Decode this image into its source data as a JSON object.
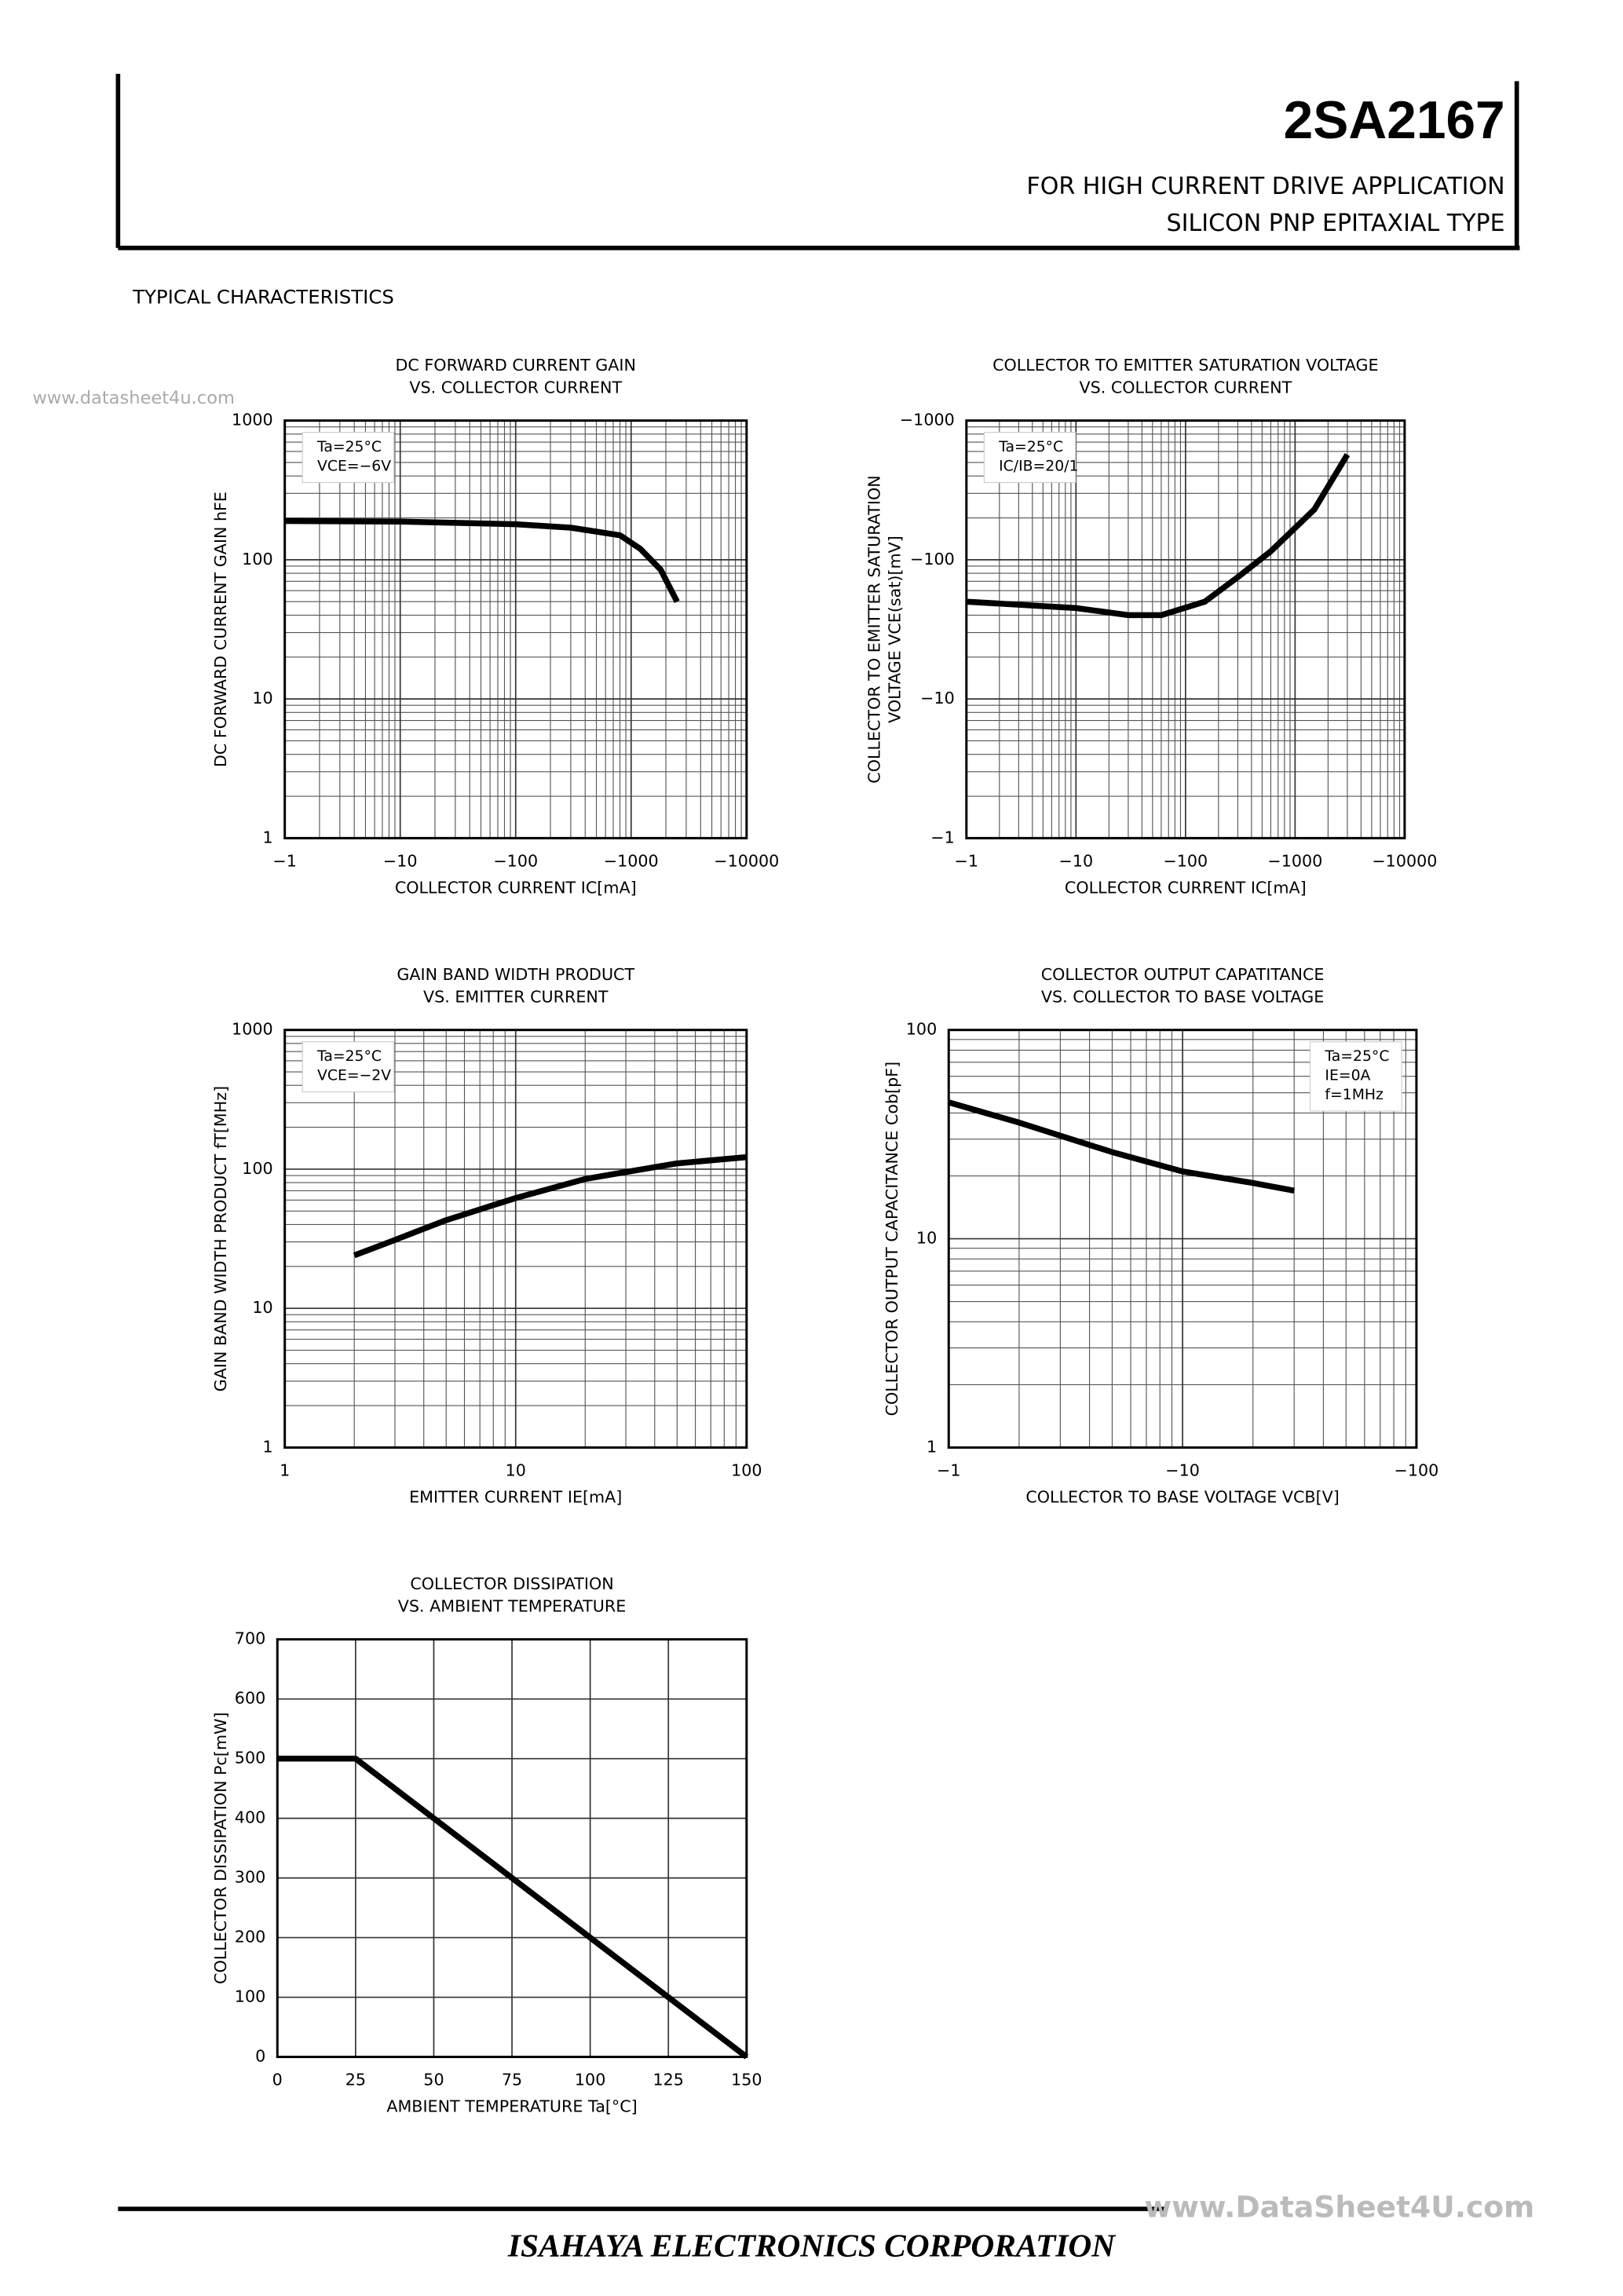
{
  "header": {
    "part_number": "2SA2167",
    "lines": [
      "FOR HIGH CURRENT DRIVE APPLICATION",
      "SILICON PNP EPITAXIAL TYPE"
    ]
  },
  "section_title": "TYPICAL CHARACTERISTICS",
  "watermark": "www.datasheet4u.com",
  "footer": {
    "watermark": "www.DataSheet4U.com",
    "company": "ISAHAYA ELECTRONICS CORPORATION"
  },
  "chart_data": [
    {
      "type": "line",
      "title": [
        "DC FORWARD CURRENT GAIN",
        "VS. COLLECTOR CURRENT"
      ],
      "xlabel": "COLLECTOR CURRENT IC[mA]",
      "ylabel": [
        "DC FORWARD CURRENT GAIN hFE"
      ],
      "xscale": "log",
      "yscale": "log",
      "grid": true,
      "color": "#000000",
      "annotations": [
        "Ta=25°C",
        "VCE=−6V"
      ],
      "annotation_corner": "top-left",
      "xlim": [
        -1,
        -10000
      ],
      "ylim": [
        1,
        1000
      ],
      "xticks": [
        {
          "value": -1,
          "label": "−1"
        },
        {
          "value": -10,
          "label": "−10"
        },
        {
          "value": -100,
          "label": "−100"
        },
        {
          "value": -1000,
          "label": "−1000"
        },
        {
          "value": -10000,
          "label": "−10000"
        }
      ],
      "yticks": [
        1,
        10,
        100,
        1000
      ],
      "x": [
        -1,
        -10,
        -100,
        -300,
        -800,
        -1200,
        -1800,
        -2500
      ],
      "values": [
        190,
        188,
        180,
        170,
        150,
        120,
        85,
        50
      ]
    },
    {
      "type": "line",
      "title": [
        "COLLECTOR TO EMITTER SATURATION VOLTAGE",
        "VS. COLLECTOR CURRENT"
      ],
      "xlabel": "COLLECTOR CURRENT IC[mA]",
      "ylabel": [
        "COLLECTOR TO EMITTER SATURATION",
        "VOLTAGE VCE(sat)[mV]"
      ],
      "xscale": "log",
      "yscale": "log",
      "grid": true,
      "color": "#000000",
      "annotations": [
        "Ta=25°C",
        "IC/IB=20/1"
      ],
      "annotation_corner": "top-left",
      "xlim": [
        -1,
        -10000
      ],
      "ylim": [
        -1,
        -1000
      ],
      "xticks": [
        {
          "value": -1,
          "label": "−1"
        },
        {
          "value": -10,
          "label": "−10"
        },
        {
          "value": -100,
          "label": "−100"
        },
        {
          "value": -1000,
          "label": "−1000"
        },
        {
          "value": -10000,
          "label": "−10000"
        }
      ],
      "yticks": [
        {
          "value": -1,
          "label": "−1"
        },
        {
          "value": -10,
          "label": "−10"
        },
        {
          "value": -100,
          "label": "−100"
        },
        {
          "value": -1000,
          "label": "−1000"
        }
      ],
      "x": [
        -1,
        -10,
        -30,
        -60,
        -150,
        -300,
        -600,
        -1500,
        -3000
      ],
      "values": [
        -50,
        -45,
        -40,
        -40,
        -50,
        -75,
        -115,
        -230,
        -570
      ]
    },
    {
      "type": "line",
      "title": [
        "GAIN BAND WIDTH PRODUCT",
        "VS. EMITTER CURRENT"
      ],
      "xlabel": "EMITTER CURRENT IE[mA]",
      "ylabel": [
        "GAIN BAND WIDTH PRODUCT fT[MHz]"
      ],
      "xscale": "log",
      "yscale": "log",
      "grid": true,
      "color": "#000000",
      "annotations": [
        "Ta=25°C",
        "VCE=−2V"
      ],
      "annotation_corner": "top-left",
      "xlim": [
        1,
        100
      ],
      "ylim": [
        1,
        1000
      ],
      "xticks": [
        1,
        10,
        100
      ],
      "yticks": [
        1,
        10,
        100,
        1000
      ],
      "x": [
        2,
        3,
        5,
        10,
        20,
        50,
        100
      ],
      "values": [
        24,
        31,
        43,
        62,
        85,
        110,
        122
      ]
    },
    {
      "type": "line",
      "title": [
        "COLLECTOR OUTPUT CAPATITANCE",
        "VS. COLLECTOR TO BASE VOLTAGE"
      ],
      "xlabel": "COLLECTOR TO BASE VOLTAGE VCB[V]",
      "ylabel": [
        "COLLECTOR OUTPUT CAPACITANCE Cob[pF]"
      ],
      "xscale": "log",
      "yscale": "log",
      "grid": true,
      "color": "#000000",
      "annotations": [
        "Ta=25°C",
        "IE=0A",
        "f=1MHz"
      ],
      "annotation_corner": "top-right",
      "xlim": [
        -1,
        -100
      ],
      "ylim": [
        1,
        100
      ],
      "xticks": [
        {
          "value": -1,
          "label": "−1"
        },
        {
          "value": -10,
          "label": "−10"
        },
        {
          "value": -100,
          "label": "−100"
        }
      ],
      "yticks": [
        1,
        10,
        100
      ],
      "x": [
        -1,
        -2,
        -5,
        -10,
        -20,
        -30
      ],
      "values": [
        45,
        36,
        26,
        21,
        18.5,
        17
      ]
    },
    {
      "type": "line",
      "title": [
        "COLLECTOR DISSIPATION",
        "VS. AMBIENT TEMPERATURE"
      ],
      "xlabel": "AMBIENT TEMPERATURE Ta[°C]",
      "ylabel": [
        "COLLECTOR DISSIPATION Pc[mW]"
      ],
      "xscale": "linear",
      "yscale": "linear",
      "grid": true,
      "color": "#000000",
      "xlim": [
        0,
        150
      ],
      "ylim": [
        0,
        700
      ],
      "xticks": [
        0,
        25,
        50,
        75,
        100,
        125,
        150
      ],
      "yticks": [
        0,
        100,
        200,
        300,
        400,
        500,
        600,
        700
      ],
      "x": [
        0,
        25,
        150
      ],
      "values": [
        500,
        500,
        0
      ]
    }
  ]
}
